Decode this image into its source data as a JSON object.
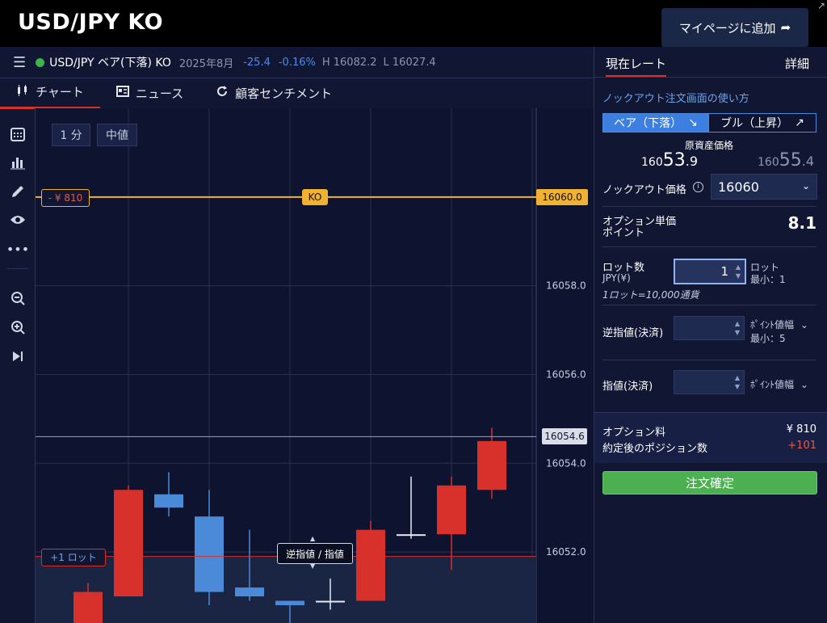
{
  "app_title": "USD/JPY KO",
  "mypage_button": "マイページに追加",
  "infobar": {
    "symbol": "USD/JPY ベア(下落) KO",
    "date": "2025年8月",
    "change": "-25.4",
    "change_pct": "-0.16%",
    "high": "H 16082.2",
    "low": "L 16027.4"
  },
  "tabs": [
    {
      "label": "チャート",
      "icon": "candlestick-icon"
    },
    {
      "label": "ニュース",
      "icon": "news-icon"
    },
    {
      "label": "顧客センチメント",
      "icon": "refresh-icon"
    }
  ],
  "chart_controls": {
    "interval": "1 分",
    "price_type": "中値"
  },
  "chart": {
    "ko_label": "KO",
    "ko_price": "16060.0",
    "ko_loss": "- ¥ 810",
    "position_label": "+1 ロット",
    "current_price": "16054.6",
    "sl_tp_tooltip": "逆指値 / 指値",
    "y_ticks": [
      "16058.0",
      "16056.0",
      "16054.0",
      "16052.0"
    ]
  },
  "chart_data": {
    "type": "candlestick",
    "ylim": [
      16050.4,
      16062.0
    ],
    "y_ticks": [
      16058.0,
      16056.0,
      16054.0,
      16052.0
    ],
    "ko_level": 16060.0,
    "current_price": 16054.6,
    "position_level": 16051.9,
    "candles": [
      {
        "open": 16050.4,
        "close": 16051.1,
        "high": 16051.3,
        "low": 16050.4,
        "color": "red"
      },
      {
        "open": 16051.0,
        "close": 16053.4,
        "high": 16053.5,
        "low": 16051.0,
        "color": "red"
      },
      {
        "open": 16053.3,
        "close": 16053.0,
        "high": 16053.8,
        "low": 16052.8,
        "color": "blue"
      },
      {
        "open": 16052.8,
        "close": 16051.1,
        "high": 16053.4,
        "low": 16050.8,
        "color": "blue"
      },
      {
        "open": 16051.2,
        "close": 16051.0,
        "high": 16052.5,
        "low": 16050.9,
        "color": "blue"
      },
      {
        "open": 16050.9,
        "close": 16050.8,
        "high": 16050.9,
        "low": 16050.4,
        "color": "blue"
      },
      {
        "open": 16050.9,
        "close": 16050.9,
        "high": 16051.4,
        "low": 16050.7,
        "color": "white"
      },
      {
        "open": 16050.9,
        "close": 16052.5,
        "high": 16052.7,
        "low": 16050.9,
        "color": "red"
      },
      {
        "open": 16052.4,
        "close": 16052.4,
        "high": 16053.7,
        "low": 16052.3,
        "color": "white"
      },
      {
        "open": 16052.4,
        "close": 16053.5,
        "high": 16053.7,
        "low": 16051.6,
        "color": "red"
      },
      {
        "open": 16053.4,
        "close": 16054.5,
        "high": 16054.8,
        "low": 16053.2,
        "color": "red"
      }
    ]
  },
  "right_panel": {
    "tab_rate": "現在レート",
    "tab_detail": "詳細",
    "howto": "ノックアウト注文画面の使い方",
    "bear_label": "ベア（下落）",
    "bull_label": "ブル（上昇）",
    "underlying_label": "原資産価格",
    "bid_prefix": "160",
    "bid_main": "53",
    "bid_suffix": ".9",
    "ask_prefix": "160",
    "ask_main": "55",
    "ask_suffix": ".4",
    "ko_price_label": "ノックアウト価格",
    "ko_price_value": "16060",
    "option_unit_label": "オプション単価",
    "option_unit_sub": "ポイント",
    "option_unit_value": "8.1",
    "lot_label": "ロット数",
    "lot_currency": "JPY(¥)",
    "lot_value": "1",
    "lot_unit": "ロット",
    "lot_min": "最小：1",
    "lot_note": "1ロット=10,000通貨",
    "stop_label": "逆指値(決済)",
    "stop_unit": "ﾎﾟｲﾝﾄ値幅",
    "stop_min": "最小：5",
    "limit_label": "指値(決済)",
    "limit_unit": "ﾎﾟｲﾝﾄ値幅",
    "premium_label": "オプション料",
    "premium_value": "¥ 810",
    "position_count_label": "約定後のポジション数",
    "position_count_value": "+101",
    "order_button": "注文確定"
  }
}
